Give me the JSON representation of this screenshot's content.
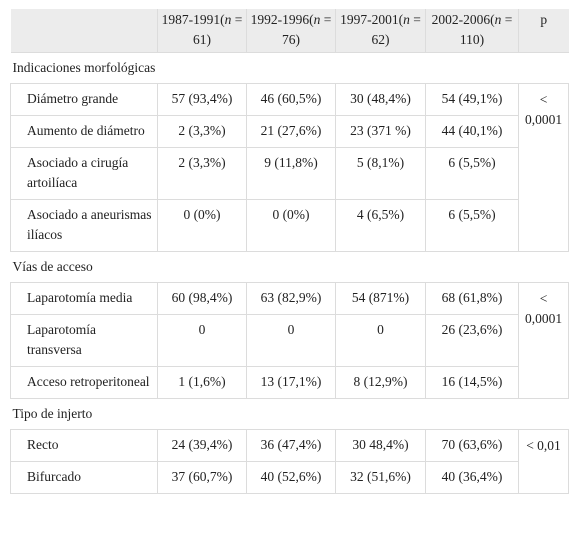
{
  "header": {
    "col0": "",
    "col1": "1987-1991(n = 61)",
    "col2": "1992-1996(n = 76)",
    "col3": "1997-2001(n = 62)",
    "col4": "2002-2006(n = 110)",
    "col5": "p"
  },
  "sections": [
    {
      "title": "Indicaciones morfológicas",
      "p_value": "< 0,0001",
      "rows": [
        {
          "label": "Diámetro grande",
          "values": [
            "57 (93,4%)",
            "46 (60,5%)",
            "30 (48,4%)",
            "54 (49,1%)"
          ]
        },
        {
          "label": "Aumento de diámetro",
          "values": [
            "2 (3,3%)",
            "21 (27,6%)",
            "23 (371 %)",
            "44 (40,1%)"
          ]
        },
        {
          "label": "Asociado a cirugía artoilíaca",
          "values": [
            "2 (3,3%)",
            "9 (11,8%)",
            "5 (8,1%)",
            "6 (5,5%)"
          ]
        },
        {
          "label": "Asociado a aneurismas ilíacos",
          "values": [
            "0 (0%)",
            "0 (0%)",
            "4 (6,5%)",
            "6 (5,5%)"
          ]
        }
      ]
    },
    {
      "title": "Vías de acceso",
      "p_value": "< 0,0001",
      "rows": [
        {
          "label": "Laparotomía media",
          "values": [
            "60 (98,4%)",
            "63 (82,9%)",
            "54 (871%)",
            "68 (61,8%)"
          ]
        },
        {
          "label": "Laparotomía transversa",
          "values": [
            "0",
            "0",
            "0",
            "26 (23,6%)"
          ]
        },
        {
          "label": "Acceso retroperitoneal",
          "values": [
            "1 (1,6%)",
            "13 (17,1%)",
            "8 (12,9%)",
            "16 (14,5%)"
          ]
        }
      ]
    },
    {
      "title": "Tipo de injerto",
      "p_value": "< 0,01",
      "rows": [
        {
          "label": "Recto",
          "values": [
            "24 (39,4%)",
            "36 (47,4%)",
            "30 48,4%)",
            "70 (63,6%)"
          ]
        },
        {
          "label": "Bifurcado",
          "values": [
            "37 (60,7%)",
            "40 (52,6%)",
            "32 (51,6%)",
            "40 (36,4%)"
          ]
        }
      ]
    }
  ]
}
